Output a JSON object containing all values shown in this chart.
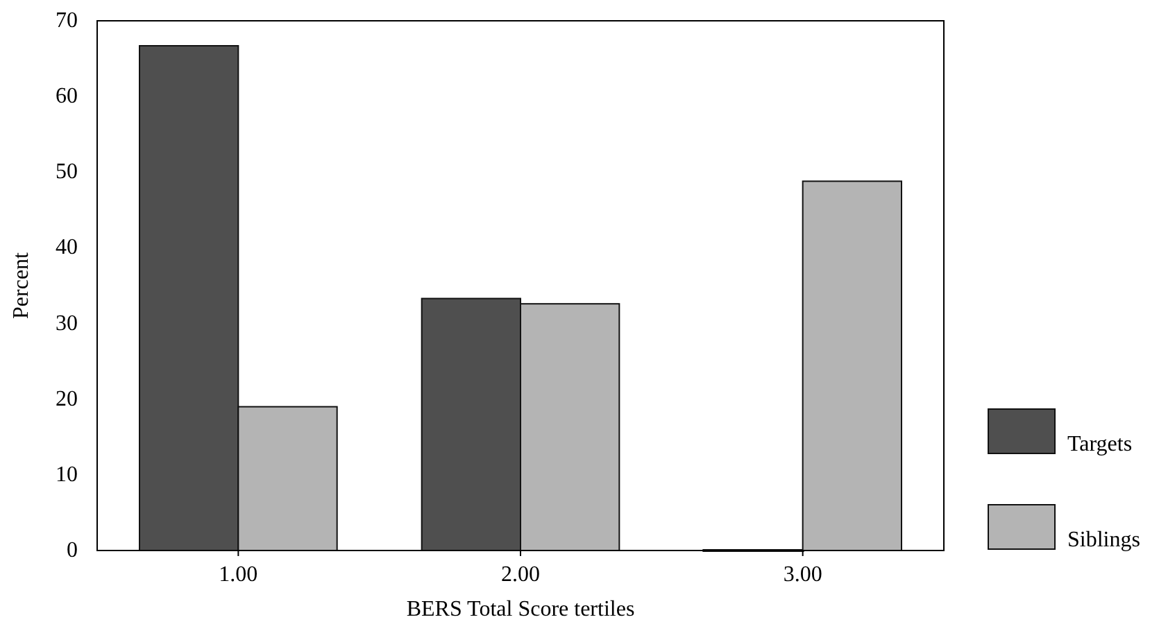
{
  "chart_data": {
    "type": "bar",
    "xlabel": "BERS Total Score tertiles",
    "ylabel": "Percent",
    "categories": [
      "1.00",
      "2.00",
      "3.00"
    ],
    "series": [
      {
        "name": "Targets",
        "color": "#4f4f4f",
        "values": [
          66.7,
          33.3,
          0
        ]
      },
      {
        "name": "Siblings",
        "color": "#b4b4b4",
        "values": [
          19,
          32.6,
          48.8
        ]
      }
    ],
    "ylim": [
      0,
      70
    ],
    "yticks": [
      0,
      10,
      20,
      30,
      40,
      50,
      60,
      70
    ],
    "grid": false,
    "legend": "right"
  }
}
